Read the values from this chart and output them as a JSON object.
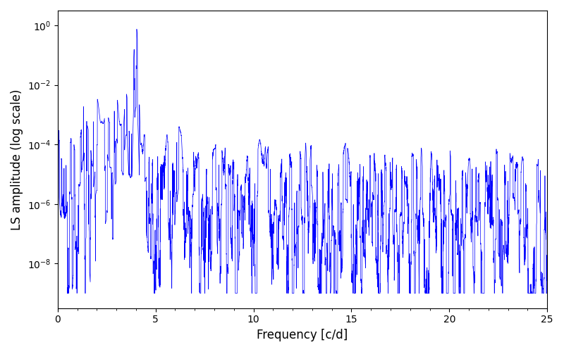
{
  "title": "",
  "xlabel": "Frequency [c/d]",
  "ylabel": "LS amplitude (log scale)",
  "xlim": [
    0,
    25
  ],
  "ylim_log_min": -9.5,
  "ylim_log_max": 0.5,
  "line_color": "#0000ff",
  "line_width": 0.5,
  "yscale": "log",
  "background_color": "#ffffff",
  "figsize": [
    8.0,
    5.0
  ],
  "dpi": 100,
  "seed": 12345,
  "n_points": 8000,
  "freq_max": 25.0,
  "noise_base_low": 5e-07,
  "noise_base_high": 3e-06,
  "envelope_decay": 0.12
}
